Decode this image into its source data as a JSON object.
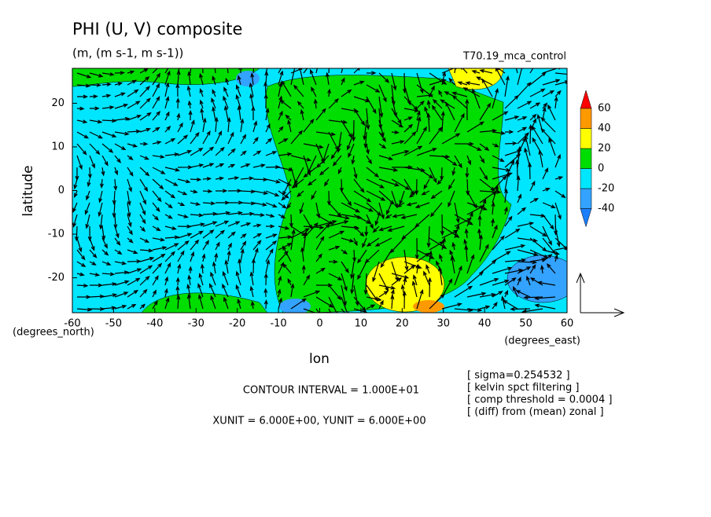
{
  "chart_data": {
    "type": "contour",
    "title": "PHI (U, V) composite",
    "subtitle": "(m, (m s-1, m s-1))",
    "run_label": "T70.19_mca_control",
    "x_label": "lon",
    "x_unit": "(degrees_east)",
    "y_label": "latitude",
    "y_unit": "(degrees_north)",
    "xlim": [
      -60,
      60
    ],
    "xticks": [
      -60,
      -50,
      -40,
      -30,
      -20,
      -10,
      0,
      10,
      20,
      30,
      40,
      50,
      60
    ],
    "ylim": [
      -28,
      28
    ],
    "yticks": [
      -20,
      -10,
      0,
      10,
      20
    ],
    "colorbar": {
      "levels": [
        -40,
        -20,
        0,
        20,
        40,
        60
      ],
      "colors": [
        "#1a7fff",
        "#33a3ff",
        "#00e6ff",
        "#00dd00",
        "#ffff00",
        "#ff9900",
        "#ff0000"
      ]
    },
    "footer": [
      "CONTOUR INTERVAL = 1.000E+01",
      "XUNIT = 6.000E+00, YUNIT = 6.000E+00"
    ],
    "notes": [
      "[ sigma=0.254532 ]",
      "[ kelvin spct filtering ]",
      "[ comp threshold = 0.0004 ]",
      "[ (diff) from (mean) zonal ]"
    ]
  }
}
